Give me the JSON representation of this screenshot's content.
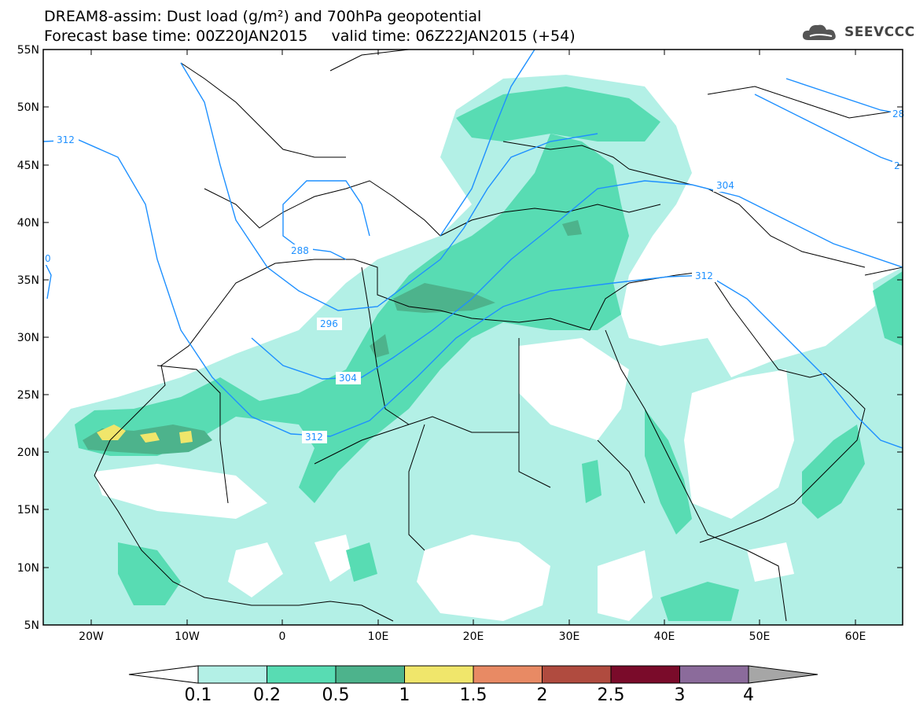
{
  "header": {
    "title_line1": "DREAM8-assim: Dust load (g/m²) and 700hPa geopotential",
    "title_line2": "Forecast base time: 00Z20JAN2015     valid time: 06Z22JAN2015 (+54)"
  },
  "logo": {
    "text": "SEEVCCC",
    "icon": "cloud-icon"
  },
  "axes": {
    "lat_labels": [
      "55N",
      "50N",
      "45N",
      "40N",
      "35N",
      "30N",
      "25N",
      "20N",
      "15N",
      "10N",
      "5N"
    ],
    "lon_labels": [
      "20W",
      "10W",
      "0",
      "10E",
      "20E",
      "30E",
      "40E",
      "50E",
      "60E"
    ]
  },
  "contours": {
    "color": "#1e90ff",
    "labels": [
      "312",
      "288",
      "296",
      "304",
      "312",
      "304",
      "312",
      "28",
      "2",
      "0"
    ]
  },
  "colorbar": {
    "levels": [
      "0.1",
      "0.2",
      "0.5",
      "1",
      "1.5",
      "2",
      "2.5",
      "3",
      "4"
    ],
    "colors": [
      "#b3f0e6",
      "#58dcb3",
      "#4db38c",
      "#f0e66b",
      "#e88a64",
      "#b04b3f",
      "#7a0b2a",
      "#8b6b9b",
      "#a6a6a6"
    ]
  }
}
